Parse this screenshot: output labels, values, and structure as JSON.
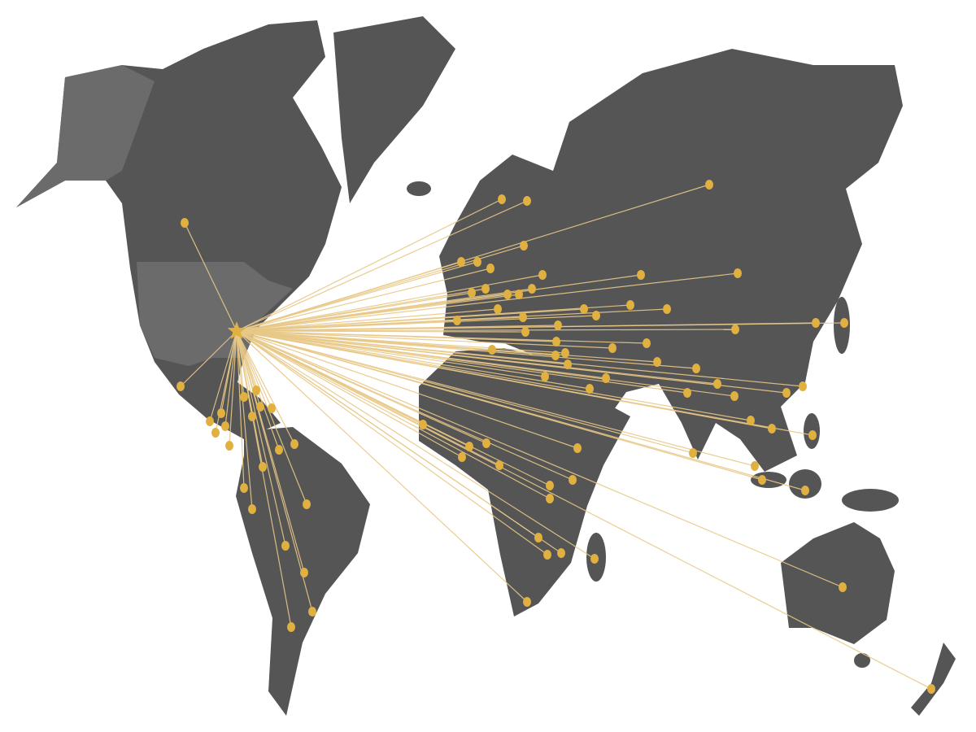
{
  "map": {
    "type": "world-connection-map",
    "origin_marker": "star-icon",
    "destination_marker": "circle-dot",
    "colors": {
      "background": "#ffffff",
      "land": "#555555",
      "highlight_land": "#6b6b6b",
      "connection_line": "#e8c887",
      "marker": "#e0b040"
    }
  }
}
